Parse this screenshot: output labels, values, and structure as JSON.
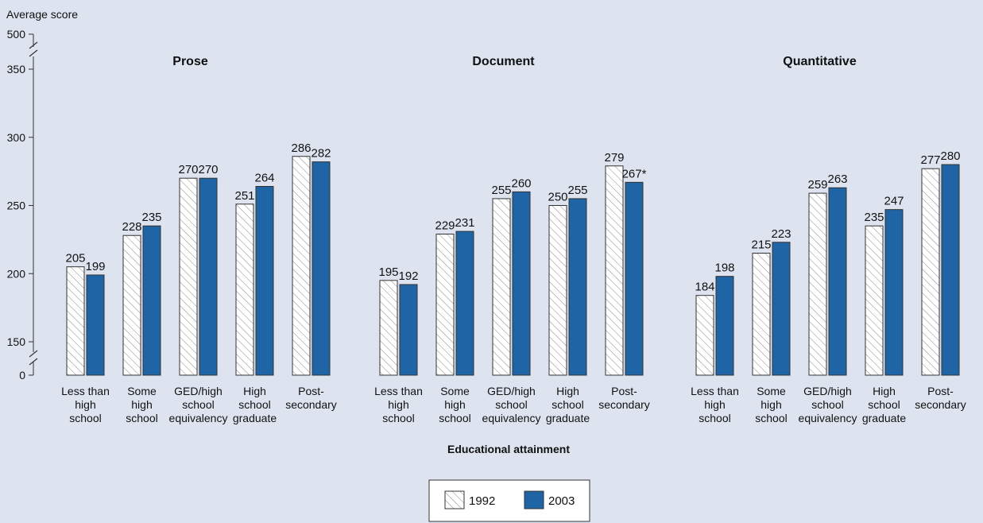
{
  "chart_data": {
    "type": "bar",
    "ylabel": "Average score",
    "xlabel": "Educational attainment",
    "ylim": [
      150,
      350
    ],
    "y_ticks_main": [
      150,
      200,
      250,
      300,
      350
    ],
    "y_ticks_break": [
      0,
      500
    ],
    "categories": [
      [
        "Less than",
        "high",
        "school"
      ],
      [
        "Some",
        "high",
        "school"
      ],
      [
        "GED/high",
        "school",
        "equivalency"
      ],
      [
        "High",
        "school",
        "graduate"
      ],
      [
        "Post-",
        "secondary"
      ]
    ],
    "legend": [
      {
        "name": "1992",
        "style": "hatched"
      },
      {
        "name": "2003",
        "color": "#1f65a6"
      }
    ],
    "panels": [
      {
        "title": "Prose",
        "series": [
          {
            "name": "1992",
            "values": [
              205,
              228,
              270,
              251,
              286
            ],
            "labels": [
              "205",
              "228",
              "270",
              "251",
              "286"
            ]
          },
          {
            "name": "2003",
            "values": [
              199,
              235,
              270,
              264,
              282
            ],
            "labels": [
              "199",
              "235",
              "270",
              "264",
              "282"
            ]
          }
        ]
      },
      {
        "title": "Document",
        "series": [
          {
            "name": "1992",
            "values": [
              195,
              229,
              255,
              250,
              279
            ],
            "labels": [
              "195",
              "229",
              "255",
              "250",
              "279"
            ]
          },
          {
            "name": "2003",
            "values": [
              192,
              231,
              260,
              255,
              267
            ],
            "labels": [
              "192",
              "231",
              "260",
              "255",
              "267*"
            ]
          }
        ]
      },
      {
        "title": "Quantitative",
        "series": [
          {
            "name": "1992",
            "values": [
              184,
              215,
              259,
              235,
              277
            ],
            "labels": [
              "184",
              "215",
              "259",
              "235",
              "277"
            ]
          },
          {
            "name": "2003",
            "values": [
              198,
              223,
              263,
              247,
              280
            ],
            "labels": [
              "198",
              "223",
              "263",
              "247",
              "280"
            ]
          }
        ]
      }
    ],
    "colors": {
      "bar_2003": "#1f65a6",
      "bar_1992_fill": "#ffffff",
      "bar_outline": "#333333",
      "background": "#dde4f0"
    }
  }
}
